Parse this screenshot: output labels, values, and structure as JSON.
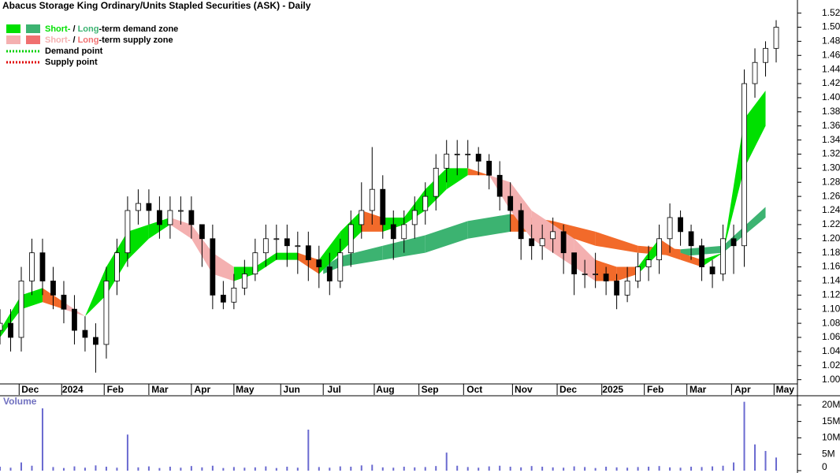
{
  "chart_data": {
    "type": "candlestick",
    "title": "Abacus Storage King Ordinary/Units Stapled Securities (ASK) - Daily",
    "volume_label": "Volume",
    "legend": [
      {
        "parts": [
          "Short-",
          " / ",
          "Long",
          "-term demand zone"
        ],
        "colors": [
          "#00e000",
          "#3cb371"
        ]
      },
      {
        "parts": [
          "Short-",
          " / ",
          "Long",
          "-term supply zone"
        ],
        "colors": [
          "#f4b0b0",
          "#f07070"
        ]
      },
      {
        "parts": [
          "Demand point"
        ],
        "colors": [
          "#00d000"
        ]
      },
      {
        "parts": [
          "Supply point"
        ],
        "colors": [
          "#e00000"
        ]
      }
    ],
    "xlim": [
      0,
      375
    ],
    "xticks": [
      {
        "value": 9,
        "label": "Dec"
      },
      {
        "value": 29,
        "label": "2024"
      },
      {
        "value": 49,
        "label": "Feb"
      },
      {
        "value": 70,
        "label": "Mar"
      },
      {
        "value": 90,
        "label": "Apr"
      },
      {
        "value": 110,
        "label": "May"
      },
      {
        "value": 132,
        "label": "Jun"
      },
      {
        "value": 152,
        "label": "Jul"
      },
      {
        "value": 176,
        "label": "Aug"
      },
      {
        "value": 197,
        "label": "Sep"
      },
      {
        "value": 218,
        "label": "Oct"
      },
      {
        "value": 241,
        "label": "Nov"
      },
      {
        "value": 262,
        "label": "Dec"
      },
      {
        "value": 283,
        "label": "2025"
      },
      {
        "value": 303,
        "label": "Feb"
      },
      {
        "value": 323,
        "label": "Mar"
      },
      {
        "value": 344,
        "label": "Apr"
      },
      {
        "value": 364,
        "label": "May"
      }
    ],
    "ylim": [
      0.994,
      1.533
    ],
    "yticks": [
      {
        "value": 1.0,
        "label": "1.00"
      },
      1.02,
      1.04,
      1.06,
      1.08,
      {
        "value": 1.1,
        "label": "1.10"
      },
      1.12,
      1.14,
      1.16,
      1.18,
      {
        "value": 1.2,
        "label": "1.20"
      },
      1.22,
      1.24,
      1.26,
      1.28,
      {
        "value": 1.3,
        "label": "1.30"
      },
      1.32,
      1.34,
      1.36,
      1.38,
      {
        "value": 1.4,
        "label": "1.40"
      },
      1.42,
      1.44,
      1.46,
      1.48,
      {
        "value": 1.5,
        "label": "1.50"
      },
      1.52
    ],
    "x": [
      0,
      5,
      10,
      15,
      20,
      25,
      30,
      35,
      40,
      45,
      50,
      55,
      60,
      65,
      70,
      75,
      80,
      85,
      90,
      95,
      100,
      105,
      110,
      115,
      120,
      125,
      130,
      135,
      140,
      145,
      150,
      155,
      160,
      165,
      170,
      175,
      180,
      185,
      190,
      195,
      200,
      205,
      210,
      215,
      220,
      225,
      230,
      235,
      240,
      245,
      250,
      255,
      260,
      265,
      270,
      275,
      280,
      285,
      290,
      295,
      300,
      305,
      310,
      315,
      320,
      325,
      330,
      335,
      340,
      345,
      350,
      355,
      360,
      365
    ],
    "open": [
      1.07,
      1.08,
      1.06,
      1.14,
      1.18,
      1.14,
      1.12,
      1.1,
      1.07,
      1.06,
      1.05,
      1.14,
      1.18,
      1.24,
      1.25,
      1.24,
      1.22,
      1.24,
      1.24,
      1.22,
      1.2,
      1.12,
      1.11,
      1.13,
      1.15,
      1.18,
      1.2,
      1.2,
      1.19,
      1.19,
      1.17,
      1.16,
      1.14,
      1.18,
      1.22,
      1.24,
      1.27,
      1.22,
      1.2,
      1.22,
      1.24,
      1.26,
      1.3,
      1.32,
      1.32,
      1.32,
      1.31,
      1.29,
      1.26,
      1.24,
      1.2,
      1.19,
      1.2,
      1.21,
      1.18,
      1.15,
      1.15,
      1.15,
      1.14,
      1.12,
      1.14,
      1.16,
      1.17,
      1.2,
      1.23,
      1.21,
      1.19,
      1.16,
      1.15,
      1.2,
      1.19,
      1.42,
      1.45,
      1.47
    ],
    "high": [
      1.1,
      1.1,
      1.16,
      1.2,
      1.2,
      1.16,
      1.14,
      1.12,
      1.09,
      1.08,
      1.16,
      1.2,
      1.26,
      1.27,
      1.27,
      1.26,
      1.26,
      1.26,
      1.26,
      1.22,
      1.22,
      1.14,
      1.15,
      1.17,
      1.2,
      1.22,
      1.22,
      1.22,
      1.21,
      1.21,
      1.19,
      1.18,
      1.2,
      1.24,
      1.28,
      1.33,
      1.29,
      1.24,
      1.24,
      1.26,
      1.28,
      1.32,
      1.34,
      1.34,
      1.34,
      1.33,
      1.32,
      1.31,
      1.28,
      1.25,
      1.22,
      1.22,
      1.23,
      1.22,
      1.18,
      1.17,
      1.18,
      1.16,
      1.15,
      1.16,
      1.18,
      1.19,
      1.22,
      1.25,
      1.24,
      1.22,
      1.2,
      1.17,
      1.22,
      1.22,
      1.44,
      1.47,
      1.48,
      1.51
    ],
    "low": [
      1.05,
      1.04,
      1.04,
      1.12,
      1.12,
      1.1,
      1.08,
      1.05,
      1.04,
      1.01,
      1.03,
      1.12,
      1.16,
      1.22,
      1.22,
      1.2,
      1.2,
      1.22,
      1.2,
      1.16,
      1.1,
      1.1,
      1.1,
      1.12,
      1.14,
      1.16,
      1.17,
      1.16,
      1.15,
      1.14,
      1.13,
      1.12,
      1.13,
      1.16,
      1.2,
      1.22,
      1.2,
      1.17,
      1.18,
      1.2,
      1.22,
      1.24,
      1.28,
      1.29,
      1.3,
      1.29,
      1.27,
      1.24,
      1.21,
      1.17,
      1.17,
      1.17,
      1.18,
      1.15,
      1.12,
      1.13,
      1.13,
      1.12,
      1.1,
      1.11,
      1.13,
      1.14,
      1.15,
      1.18,
      1.19,
      1.17,
      1.14,
      1.13,
      1.14,
      1.15,
      1.16,
      1.4,
      1.43,
      1.45
    ],
    "close": [
      1.08,
      1.06,
      1.14,
      1.18,
      1.14,
      1.12,
      1.1,
      1.07,
      1.06,
      1.05,
      1.14,
      1.18,
      1.24,
      1.25,
      1.24,
      1.22,
      1.24,
      1.24,
      1.22,
      1.2,
      1.12,
      1.11,
      1.13,
      1.15,
      1.18,
      1.2,
      1.2,
      1.19,
      1.19,
      1.17,
      1.16,
      1.14,
      1.18,
      1.22,
      1.24,
      1.27,
      1.22,
      1.2,
      1.22,
      1.24,
      1.26,
      1.3,
      1.32,
      1.32,
      1.32,
      1.31,
      1.29,
      1.26,
      1.24,
      1.2,
      1.19,
      1.2,
      1.21,
      1.18,
      1.15,
      1.15,
      1.15,
      1.14,
      1.12,
      1.14,
      1.16,
      1.17,
      1.2,
      1.23,
      1.21,
      1.19,
      1.16,
      1.15,
      1.2,
      1.19,
      1.42,
      1.45,
      1.47,
      1.5
    ],
    "volume": [
      1200000,
      900000,
      2500000,
      1500000,
      19000000,
      1100000,
      800000,
      1300000,
      900000,
      1600000,
      1200000,
      900000,
      11000000,
      1000000,
      1300000,
      800000,
      1200000,
      900000,
      1400000,
      1000000,
      1500000,
      800000,
      1100000,
      900000,
      1000000,
      1300000,
      800000,
      1200000,
      900000,
      12500000,
      1100000,
      900000,
      1300000,
      1200000,
      1600000,
      1800000,
      1000000,
      900000,
      1200000,
      1000000,
      1100000,
      1400000,
      5500000,
      1500000,
      1100000,
      900000,
      1300000,
      1500000,
      1200000,
      1000000,
      1400000,
      1200000,
      1000000,
      900000,
      1300000,
      1100000,
      800000,
      1200000,
      1000000,
      900000,
      1100000,
      1200000,
      1400000,
      1000000,
      900000,
      1200000,
      1100000,
      1300000,
      1500000,
      2500000,
      21000000,
      8000000,
      6000000,
      4000000
    ],
    "volume_ylim": [
      0,
      22600000
    ],
    "volume_yticks": [
      0,
      {
        "value": 5000000,
        "label": "5M"
      },
      {
        "value": 10000000,
        "label": "10M"
      },
      {
        "value": 15000000,
        "label": "15M"
      },
      {
        "value": 20000000,
        "label": "20M"
      }
    ],
    "short_zone": {
      "x": [
        0,
        10,
        20,
        30,
        40,
        50,
        60,
        70,
        80,
        90,
        100,
        110,
        120,
        130,
        140,
        150,
        160,
        170,
        180,
        190,
        200,
        210,
        220,
        230,
        240,
        250,
        260,
        270,
        280,
        290,
        300,
        310,
        320,
        330,
        340,
        350,
        360
      ],
      "upper": [
        1.07,
        1.12,
        1.13,
        1.11,
        1.09,
        1.16,
        1.21,
        1.22,
        1.23,
        1.22,
        1.18,
        1.16,
        1.16,
        1.18,
        1.18,
        1.17,
        1.21,
        1.24,
        1.23,
        1.23,
        1.27,
        1.3,
        1.3,
        1.29,
        1.28,
        1.24,
        1.22,
        1.2,
        1.17,
        1.16,
        1.16,
        1.2,
        1.18,
        1.17,
        1.18,
        1.37,
        1.41
      ],
      "lower": [
        1.06,
        1.1,
        1.11,
        1.1,
        1.09,
        1.12,
        1.17,
        1.2,
        1.22,
        1.2,
        1.15,
        1.14,
        1.15,
        1.17,
        1.17,
        1.15,
        1.18,
        1.21,
        1.21,
        1.22,
        1.24,
        1.27,
        1.29,
        1.29,
        1.24,
        1.2,
        1.18,
        1.16,
        1.14,
        1.14,
        1.15,
        1.18,
        1.17,
        1.16,
        1.18,
        1.3,
        1.36
      ],
      "colors": [
        "#00e000",
        "#00e000",
        "#f26a2a",
        "#f4b0b0",
        "#00e000",
        "#00e000",
        "#00e000",
        "#00e000",
        "#f4b0b0",
        "#f4b0b0",
        "#f4b0b0",
        "#00e000",
        "#00e000",
        "#00e000",
        "#f26a2a",
        "#00e000",
        "#00e000",
        "#f26a2a",
        "#00e000",
        "#00e000",
        "#00e000",
        "#00e000",
        "#f26a2a",
        "#f4b0b0",
        "#f4b0b0",
        "#f4b0b0",
        "#f4b0b0",
        "#f4b0b0",
        "#f26a2a",
        "#f26a2a",
        "#00e000",
        "#f26a2a",
        "#f26a2a",
        "#00e000",
        "#00e000",
        "#00e000",
        "#00e000"
      ]
    },
    "long_zone": {
      "x": [
        152,
        160,
        180,
        200,
        220,
        240,
        250,
        260,
        280,
        300,
        320,
        340,
        360
      ],
      "upper": [
        1.16,
        1.175,
        1.19,
        1.205,
        1.225,
        1.235,
        1.23,
        1.225,
        1.21,
        1.19,
        1.185,
        1.19,
        1.245
      ],
      "lower": [
        1.15,
        1.16,
        1.17,
        1.18,
        1.2,
        1.21,
        1.21,
        1.21,
        1.19,
        1.18,
        1.175,
        1.18,
        1.23
      ],
      "colors": [
        "#3cb371",
        "#3cb371",
        "#3cb371",
        "#3cb371",
        "#3cb371",
        "#f26a2a",
        "#f26a2a",
        "#f26a2a",
        "#f26a2a",
        "#f26a2a",
        "#3cb371",
        "#3cb371",
        "#3cb371"
      ]
    }
  }
}
